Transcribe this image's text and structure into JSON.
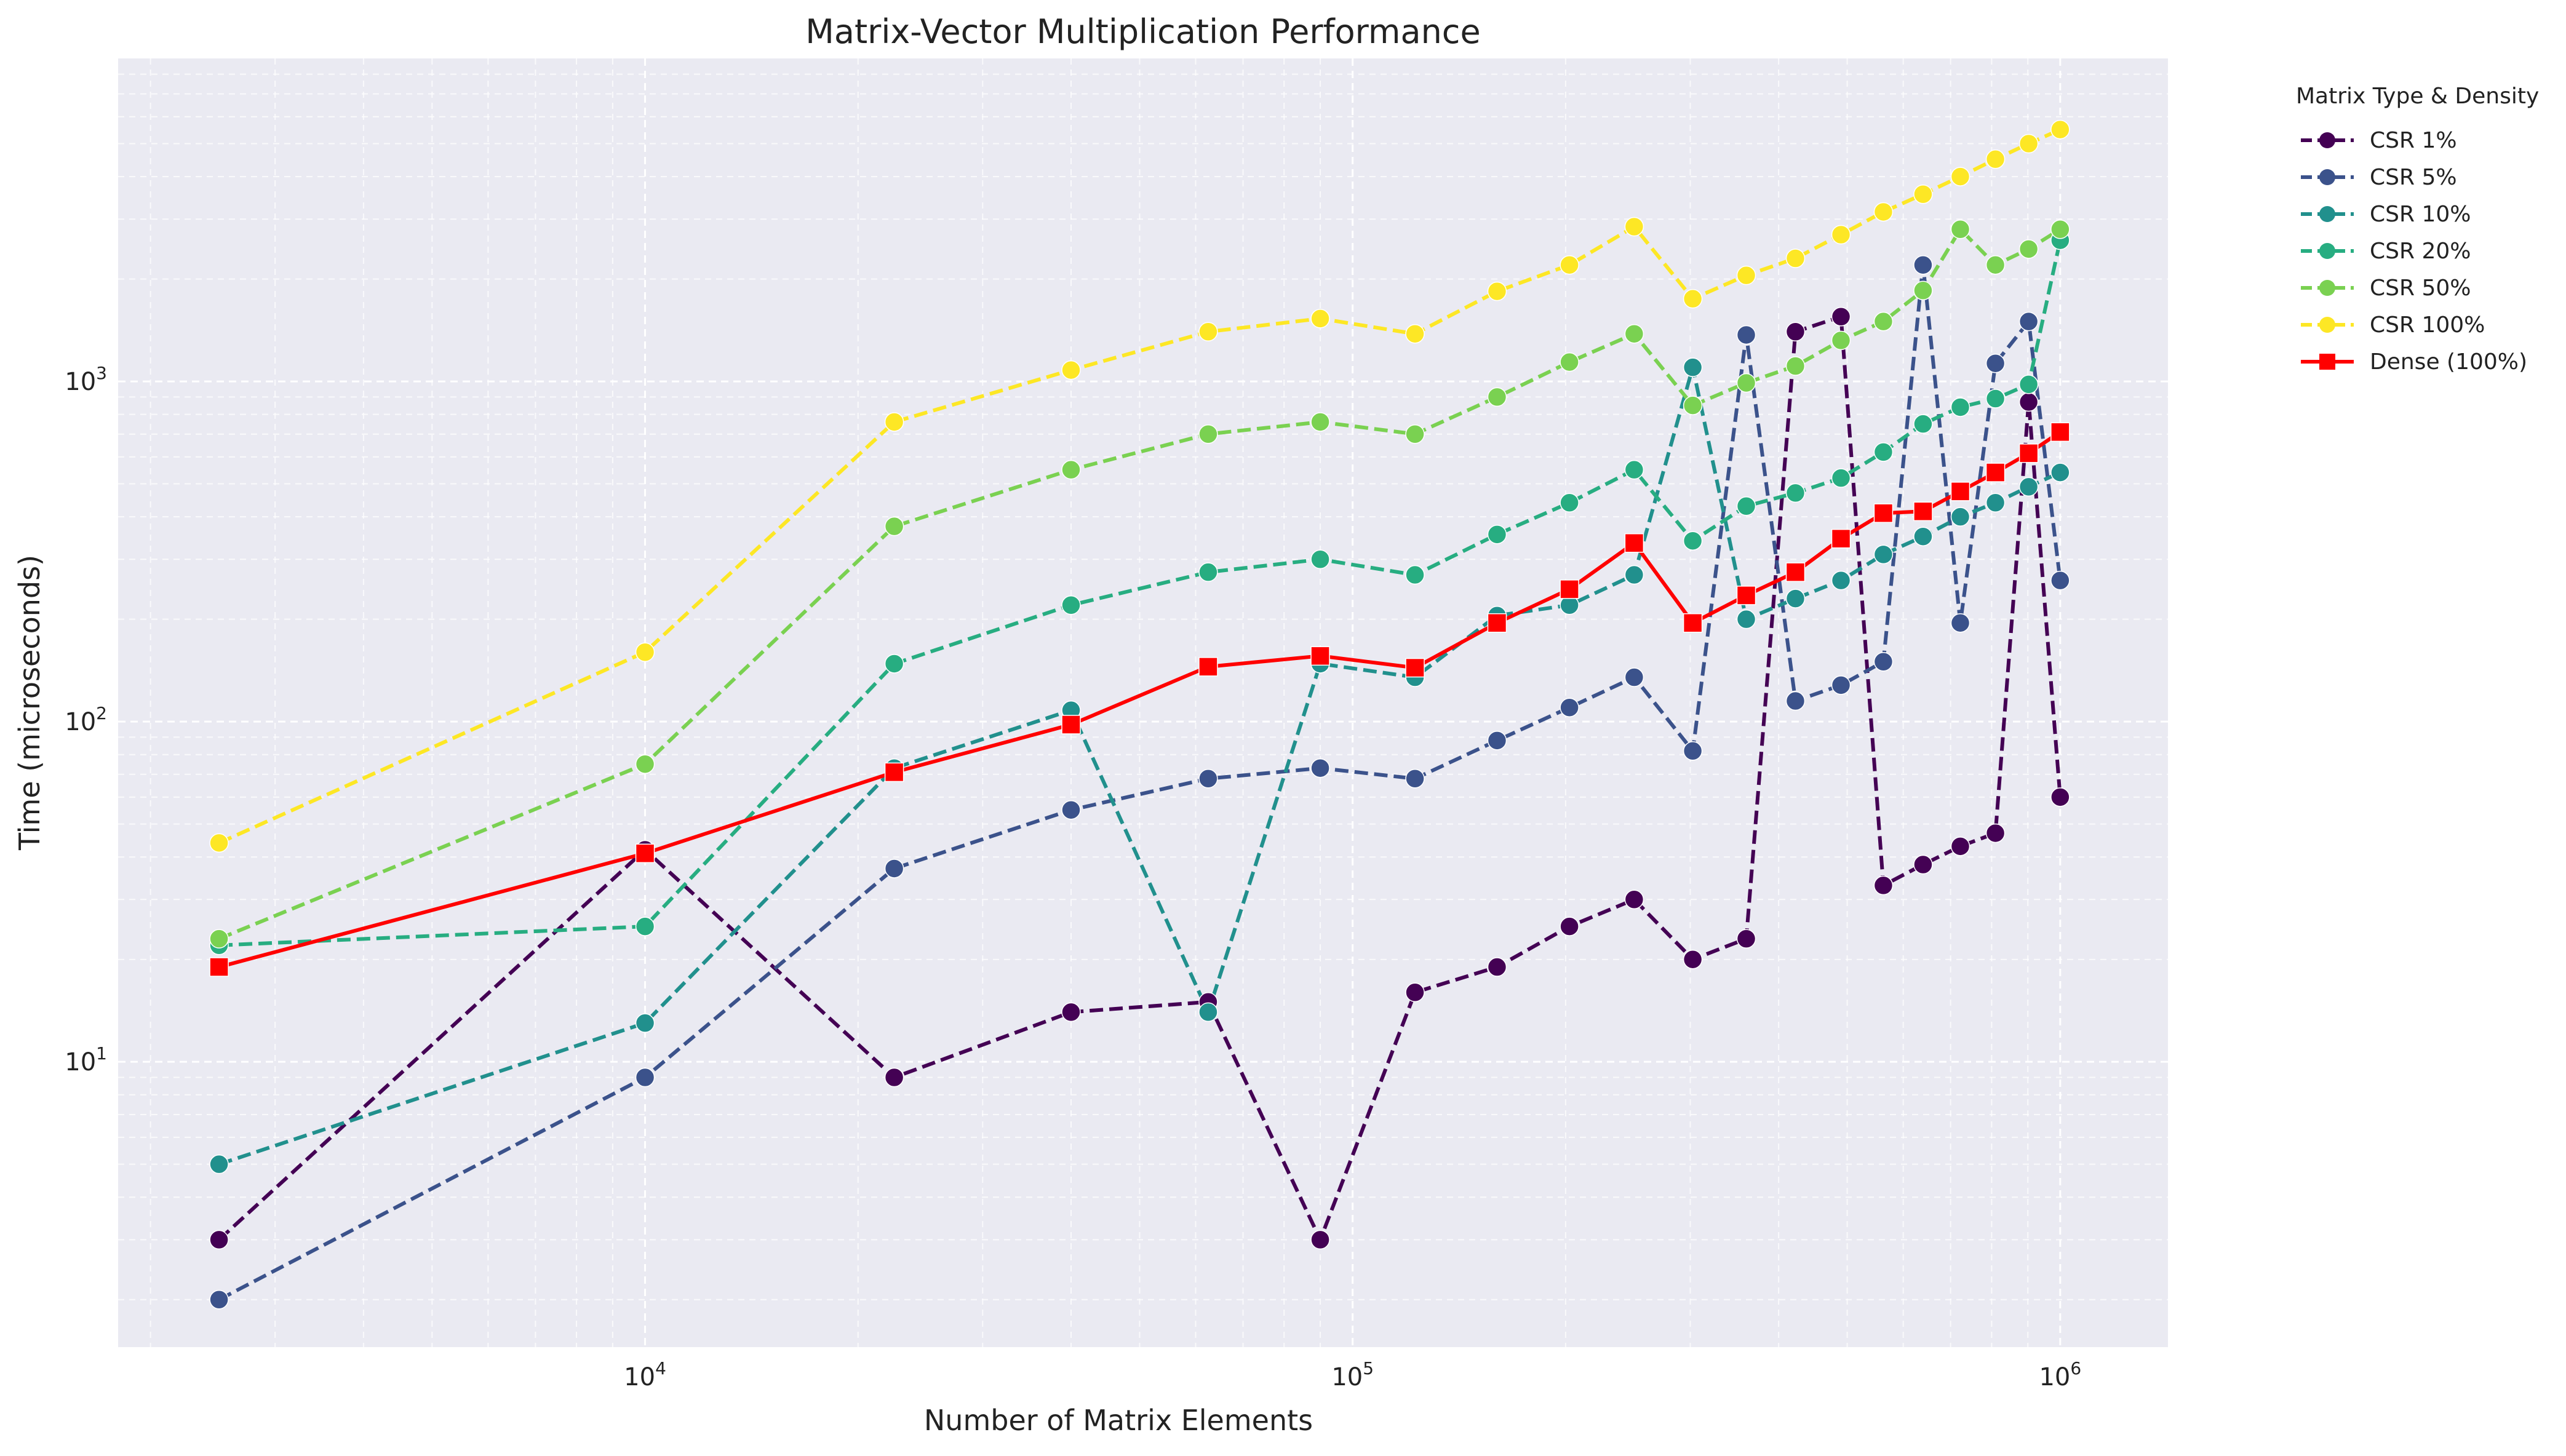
{
  "chart_data": {
    "type": "line",
    "title": "Matrix-Vector Multiplication Performance",
    "xlabel": "Number of Matrix Elements",
    "ylabel": "Time (microseconds)",
    "xscale": "log",
    "yscale": "log",
    "xlim": [
      1800,
      1420000
    ],
    "ylim": [
      1.45,
      8900
    ],
    "grid": true,
    "legend": {
      "title": "Matrix Type & Density",
      "placement": "outside-top-right"
    },
    "x_ticks": [
      {
        "value": 10000,
        "base": "10",
        "exp": "4"
      },
      {
        "value": 100000,
        "base": "10",
        "exp": "5"
      },
      {
        "value": 1000000,
        "base": "10",
        "exp": "6"
      }
    ],
    "y_ticks": [
      {
        "value": 10,
        "base": "10",
        "exp": "1"
      },
      {
        "value": 100,
        "base": "10",
        "exp": "2"
      },
      {
        "value": 1000,
        "base": "10",
        "exp": "3"
      }
    ],
    "x": [
      2500,
      10000,
      22500,
      40000,
      62500,
      90000,
      122500,
      160000,
      202500,
      250000,
      302500,
      360000,
      422500,
      490000,
      562500,
      640000,
      722500,
      810000,
      902500,
      1000000
    ],
    "series": [
      {
        "name": "CSR 1%",
        "color": "#440154",
        "dash": true,
        "marker": "circle",
        "values": [
          3,
          42,
          9,
          14,
          15,
          3,
          16,
          19,
          25,
          30,
          20,
          23,
          1400,
          1550,
          33,
          38,
          43,
          47,
          870,
          60
        ]
      },
      {
        "name": "CSR 5%",
        "color": "#3b528b",
        "dash": true,
        "marker": "circle",
        "values": [
          2,
          9,
          37,
          55,
          68,
          73,
          68,
          88,
          110,
          135,
          82,
          1370,
          115,
          128,
          150,
          2200,
          195,
          1130,
          1500,
          260
        ]
      },
      {
        "name": "CSR 10%",
        "color": "#21908d",
        "dash": true,
        "marker": "circle",
        "values": [
          5,
          13,
          73,
          108,
          14,
          148,
          135,
          205,
          220,
          270,
          1100,
          200,
          230,
          260,
          310,
          350,
          400,
          440,
          490,
          540
        ]
      },
      {
        "name": "CSR 20%",
        "color": "#27ad81",
        "dash": true,
        "marker": "circle",
        "values": [
          22,
          25,
          148,
          220,
          275,
          300,
          270,
          355,
          440,
          550,
          340,
          430,
          470,
          520,
          620,
          750,
          840,
          890,
          980,
          2600
        ]
      },
      {
        "name": "CSR 50%",
        "color": "#7ad151",
        "dash": true,
        "marker": "circle",
        "values": [
          23,
          75,
          375,
          550,
          700,
          760,
          700,
          900,
          1140,
          1380,
          850,
          990,
          1110,
          1320,
          1500,
          1850,
          2800,
          2200,
          2450,
          2800
        ]
      },
      {
        "name": "CSR 100%",
        "color": "#fde725",
        "dash": true,
        "marker": "circle",
        "values": [
          44,
          160,
          760,
          1080,
          1400,
          1530,
          1380,
          1840,
          2200,
          2850,
          1750,
          2050,
          2300,
          2700,
          3150,
          3550,
          4000,
          4500,
          5000,
          5500
        ]
      },
      {
        "name": "Dense (100%)",
        "color": "#ff0000",
        "dash": false,
        "marker": "square",
        "values": [
          19,
          41,
          71,
          98,
          145,
          156,
          144,
          195,
          245,
          335,
          195,
          235,
          275,
          345,
          410,
          415,
          475,
          540,
          615,
          710
        ]
      }
    ]
  }
}
